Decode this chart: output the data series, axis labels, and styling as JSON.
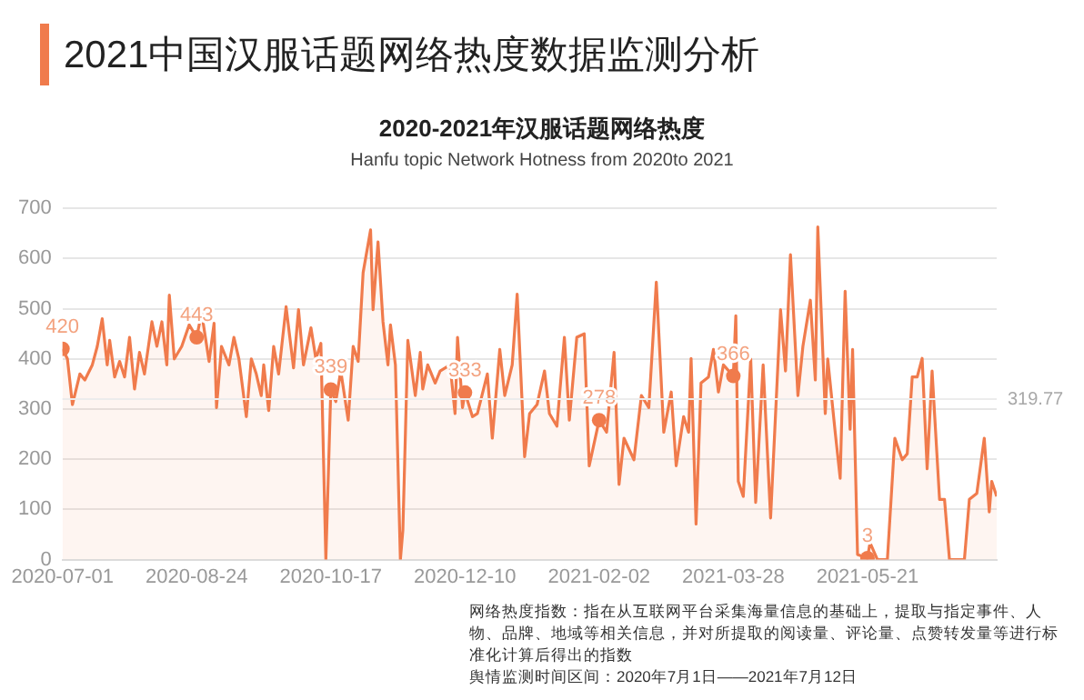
{
  "chart_data": {
    "type": "area",
    "title": "2021中国汉服话题网络热度数据监测分析",
    "subtitle": "2020-2021年汉服话题网络热度",
    "annotations": [
      "Hanfu topic Network Hotness from 2020to 2021",
      "网络热度指数：指在从互联网平台采集海量信息的基础上，提取与指定事件、人物、品牌、地域等相关信息，并对所提取的阅读量、评论量、点赞转发量等进行标准化计算后得出的指数",
      "舆情监测时间区间：2020年7月1日——2021年7月12日"
    ],
    "x": [
      "2020-07-01",
      "2020-07-03",
      "2020-07-05",
      "2020-07-08",
      "2020-07-10",
      "2020-07-13",
      "2020-07-15",
      "2020-07-17",
      "2020-07-19",
      "2020-07-20",
      "2020-07-22",
      "2020-07-24",
      "2020-07-26",
      "2020-07-28",
      "2020-07-30",
      "2020-08-01",
      "2020-08-03",
      "2020-08-06",
      "2020-08-08",
      "2020-08-10",
      "2020-08-12",
      "2020-08-13",
      "2020-08-15",
      "2020-08-18",
      "2020-08-21",
      "2020-08-24",
      "2020-08-26",
      "2020-08-29",
      "2020-08-31",
      "2020-09-01",
      "2020-09-03",
      "2020-09-06",
      "2020-09-08",
      "2020-09-10",
      "2020-09-13",
      "2020-09-15",
      "2020-09-17",
      "2020-09-19",
      "2020-09-20",
      "2020-09-22",
      "2020-09-24",
      "2020-09-26",
      "2020-09-29",
      "2020-10-02",
      "2020-10-04",
      "2020-10-06",
      "2020-10-09",
      "2020-10-11",
      "2020-10-13",
      "2020-10-15",
      "2020-10-17",
      "2020-10-19",
      "2020-10-21",
      "2020-10-24",
      "2020-10-26",
      "2020-10-28",
      "2020-10-30",
      "2020-11-02",
      "2020-11-03",
      "2020-11-05",
      "2020-11-07",
      "2020-11-09",
      "2020-11-10",
      "2020-11-12",
      "2020-11-14",
      "2020-11-15",
      "2020-11-17",
      "2020-11-20",
      "2020-11-22",
      "2020-11-23",
      "2020-11-25",
      "2020-11-28",
      "2020-11-30",
      "2020-12-04",
      "2020-12-06",
      "2020-12-07",
      "2020-12-09",
      "2020-12-10",
      "2020-12-13",
      "2020-12-15",
      "2020-12-19",
      "2020-12-21",
      "2020-12-24",
      "2020-12-26",
      "2020-12-29",
      "2020-12-31",
      "2021-01-03",
      "2021-01-05",
      "2021-01-08",
      "2021-01-11",
      "2021-01-13",
      "2021-01-16",
      "2021-01-19",
      "2021-01-21",
      "2021-01-24",
      "2021-01-27",
      "2021-01-29",
      "2021-02-02",
      "2021-02-05",
      "2021-02-08",
      "2021-02-10",
      "2021-02-12",
      "2021-02-16",
      "2021-02-19",
      "2021-02-22",
      "2021-02-25",
      "2021-02-28",
      "2021-03-03",
      "2021-03-05",
      "2021-03-08",
      "2021-03-10",
      "2021-03-11",
      "2021-03-13",
      "2021-03-15",
      "2021-03-18",
      "2021-03-20",
      "2021-03-22",
      "2021-03-24",
      "2021-03-28",
      "2021-03-29",
      "2021-03-30",
      "2021-04-01",
      "2021-04-04",
      "2021-04-06",
      "2021-04-09",
      "2021-04-12",
      "2021-04-16",
      "2021-04-18",
      "2021-04-20",
      "2021-04-23",
      "2021-04-25",
      "2021-04-28",
      "2021-04-30",
      "2021-05-01",
      "2021-05-04",
      "2021-05-05",
      "2021-05-08",
      "2021-05-10",
      "2021-05-12",
      "2021-05-14",
      "2021-05-15",
      "2021-05-17",
      "2021-05-21",
      "2021-05-22",
      "2021-05-25",
      "2021-05-29",
      "2021-06-01",
      "2021-06-04",
      "2021-06-06",
      "2021-06-08",
      "2021-06-10",
      "2021-06-12",
      "2021-06-14",
      "2021-06-16",
      "2021-06-19",
      "2021-06-21",
      "2021-06-23",
      "2021-06-29",
      "2021-07-01",
      "2021-07-04",
      "2021-07-07",
      "2021-07-09",
      "2021-07-10",
      "2021-07-12"
    ],
    "values": [
      420,
      400,
      309,
      370,
      358,
      388,
      425,
      480,
      388,
      437,
      364,
      395,
      364,
      443,
      340,
      413,
      370,
      474,
      425,
      474,
      388,
      527,
      400,
      425,
      468,
      443,
      492,
      395,
      471,
      303,
      425,
      388,
      443,
      400,
      285,
      400,
      370,
      327,
      388,
      297,
      425,
      370,
      504,
      382,
      498,
      388,
      462,
      400,
      431,
      0,
      339,
      315,
      376,
      278,
      425,
      395,
      572,
      657,
      498,
      633,
      474,
      388,
      468,
      388,
      0,
      59,
      437,
      327,
      413,
      340,
      388,
      352,
      376,
      388,
      291,
      443,
      303,
      333,
      285,
      291,
      370,
      242,
      419,
      327,
      388,
      529,
      205,
      291,
      309,
      376,
      291,
      266,
      443,
      278,
      443,
      450,
      187,
      278,
      254,
      413,
      150,
      242,
      199,
      327,
      303,
      553,
      254,
      334,
      187,
      285,
      254,
      401,
      71,
      352,
      364,
      419,
      334,
      388,
      366,
      486,
      156,
      126,
      400,
      114,
      388,
      83,
      498,
      376,
      608,
      327,
      425,
      517,
      358,
      663,
      291,
      400,
      254,
      162,
      535,
      260,
      419,
      10,
      3,
      34,
      0,
      0,
      242,
      199,
      211,
      364,
      364,
      401,
      181,
      376,
      120,
      120,
      0,
      0,
      120,
      132,
      242,
      95,
      156,
      126
    ],
    "value_labels": [
      "420",
      null,
      null,
      null,
      null,
      null,
      null,
      null,
      null,
      null,
      null,
      null,
      null,
      null,
      null,
      null,
      null,
      null,
      null,
      null,
      null,
      null,
      null,
      null,
      null,
      "443",
      null,
      null,
      null,
      null,
      null,
      null,
      null,
      null,
      null,
      null,
      null,
      null,
      null,
      null,
      null,
      null,
      null,
      null,
      null,
      null,
      null,
      null,
      null,
      null,
      "339",
      null,
      null,
      null,
      null,
      null,
      null,
      null,
      null,
      null,
      null,
      null,
      null,
      null,
      null,
      null,
      null,
      null,
      null,
      null,
      null,
      null,
      null,
      null,
      null,
      null,
      null,
      "333",
      null,
      null,
      null,
      null,
      null,
      null,
      null,
      null,
      null,
      null,
      null,
      null,
      null,
      null,
      null,
      null,
      null,
      null,
      null,
      "278",
      null,
      null,
      null,
      null,
      null,
      null,
      null,
      null,
      null,
      null,
      null,
      null,
      null,
      null,
      null,
      null,
      null,
      null,
      null,
      null,
      "366",
      null,
      null,
      null,
      null,
      null,
      null,
      null,
      null,
      null,
      null,
      null,
      null,
      null,
      null,
      null,
      null,
      null,
      null,
      null,
      null,
      null,
      null,
      null,
      "3",
      null,
      null,
      null,
      null,
      null,
      null,
      null,
      null,
      null,
      null,
      null,
      null,
      null,
      null,
      null,
      null,
      null,
      null,
      null,
      null,
      null
    ],
    "color": "#f07b4c",
    "xlim": [
      "2020-07-01",
      "2021-07-12"
    ],
    "xticks": [
      "2020-07-01",
      "2020-08-24",
      "2020-10-17",
      "2020-12-10",
      "2021-02-02",
      "2021-03-28",
      "2021-05-21"
    ],
    "ylim": [
      0,
      700
    ],
    "yticks": [
      0,
      100,
      200,
      300,
      400,
      500,
      600,
      700
    ],
    "ref_lines": [
      {
        "axis": "y",
        "value": 319.77,
        "label": "319.77",
        "color": "#ececec"
      }
    ],
    "grid": "y",
    "legend": false
  }
}
